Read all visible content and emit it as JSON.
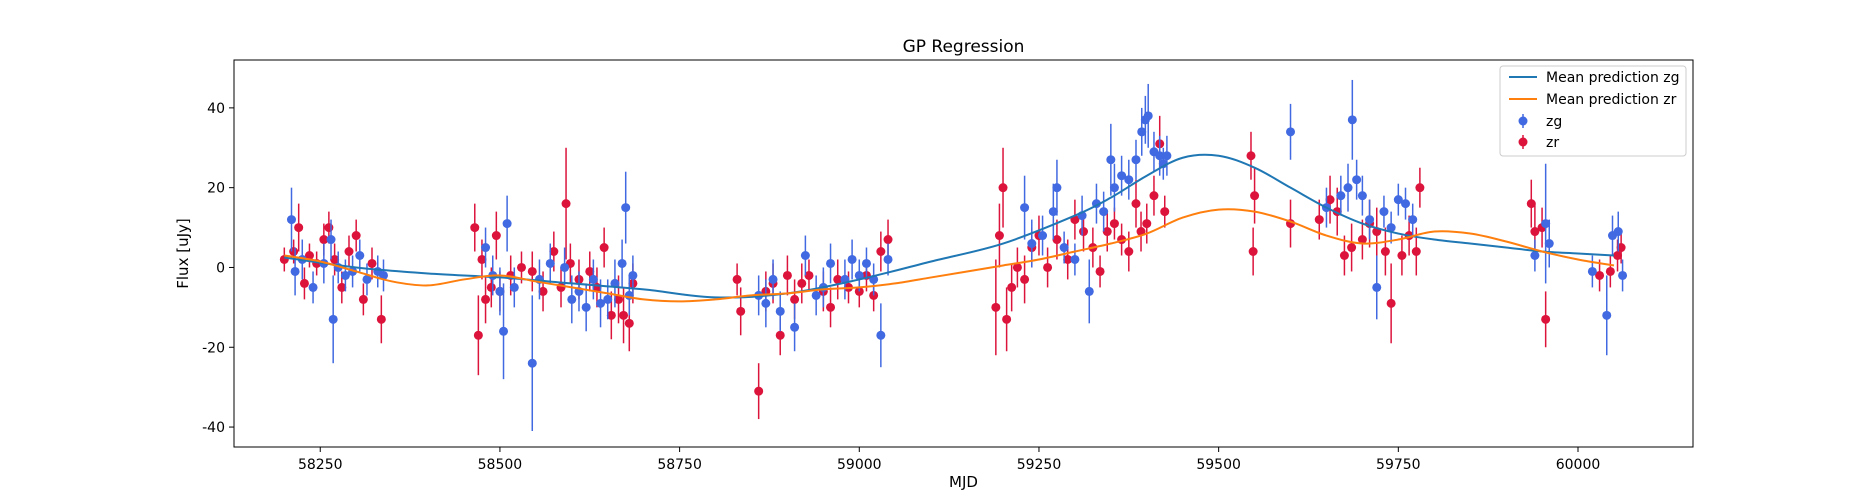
{
  "chart_data": {
    "type": "scatter",
    "title": "GP Regression",
    "xlabel": "MJD",
    "ylabel": "Flux [uJy]",
    "xlim": [
      58130,
      60160
    ],
    "ylim": [
      -45,
      52
    ],
    "xticks": [
      58250,
      58500,
      58750,
      59000,
      59250,
      59500,
      59750,
      60000
    ],
    "yticks": [
      -40,
      -20,
      0,
      20,
      40
    ],
    "grid": false,
    "legend_position": "top-right",
    "colors": {
      "zg": "#4169e1",
      "zr": "#dc143c",
      "mean_zg": "#1f77b4",
      "mean_zr": "#ff7f0e"
    },
    "lines": [
      {
        "name": "Mean prediction zg",
        "color": "#1f77b4",
        "x": [
          58200,
          58300,
          58400,
          58500,
          58600,
          58700,
          58800,
          58900,
          59000,
          59100,
          59200,
          59300,
          59350,
          59400,
          59450,
          59500,
          59550,
          59600,
          59650,
          59700,
          59750,
          59800,
          59850,
          59900,
          59950,
          60000,
          60050
        ],
        "y": [
          2.5,
          0,
          -1.5,
          -2.5,
          -4,
          -5.5,
          -7.5,
          -6.5,
          -3,
          1.5,
          6,
          13,
          17.5,
          23,
          27.5,
          28,
          25,
          20,
          15,
          11,
          8.5,
          7,
          6,
          5,
          4,
          3.5,
          3
        ]
      },
      {
        "name": "Mean prediction zr",
        "color": "#ff7f0e",
        "x": [
          58200,
          58250,
          58300,
          58350,
          58400,
          58450,
          58500,
          58550,
          58600,
          58650,
          58700,
          58750,
          58800,
          58850,
          58900,
          58950,
          59000,
          59050,
          59100,
          59150,
          59200,
          59250,
          59300,
          59350,
          59400,
          59450,
          59500,
          59550,
          59600,
          59650,
          59700,
          59750,
          59800,
          59850,
          59900,
          59950,
          60000,
          60050
        ],
        "y": [
          3,
          1.5,
          -1,
          -3.5,
          -4.5,
          -3,
          -2,
          -3.5,
          -5,
          -6.5,
          -8,
          -8.5,
          -8,
          -7,
          -6.5,
          -5.5,
          -5,
          -4,
          -2.5,
          -1,
          0.5,
          2,
          4,
          6,
          8.5,
          12.5,
          14.5,
          14,
          11.5,
          8,
          6,
          7,
          9,
          8.5,
          6.5,
          4,
          2,
          0.5
        ]
      }
    ],
    "series": [
      {
        "name": "zg",
        "color": "#4169e1",
        "points": [
          [
            58210,
            12,
            8
          ],
          [
            58215,
            -1,
            6
          ],
          [
            58225,
            2,
            5
          ],
          [
            58240,
            -5,
            4
          ],
          [
            58255,
            1,
            5
          ],
          [
            58265,
            7,
            5
          ],
          [
            58268,
            -13,
            11
          ],
          [
            58275,
            0,
            4
          ],
          [
            58285,
            -2,
            4
          ],
          [
            58295,
            -1,
            4
          ],
          [
            58305,
            3,
            4
          ],
          [
            58315,
            -3,
            4
          ],
          [
            58330,
            -1,
            4
          ],
          [
            58338,
            -2,
            4
          ],
          [
            58480,
            5,
            5
          ],
          [
            58490,
            -2,
            5
          ],
          [
            58500,
            -6,
            6
          ],
          [
            58505,
            -16,
            12
          ],
          [
            58510,
            11,
            7
          ],
          [
            58520,
            -5,
            5
          ],
          [
            58545,
            -24,
            17
          ],
          [
            58555,
            -3,
            5
          ],
          [
            58570,
            1,
            5
          ],
          [
            58590,
            0,
            5
          ],
          [
            58600,
            -8,
            6
          ],
          [
            58610,
            -6,
            5
          ],
          [
            58620,
            -10,
            6
          ],
          [
            58630,
            -3,
            5
          ],
          [
            58640,
            -9,
            6
          ],
          [
            58650,
            -8,
            5
          ],
          [
            58660,
            -4,
            6
          ],
          [
            58670,
            1,
            6
          ],
          [
            58675,
            15,
            9
          ],
          [
            58680,
            -7,
            5
          ],
          [
            58685,
            -2,
            5
          ],
          [
            58860,
            -7,
            5
          ],
          [
            58870,
            -9,
            6
          ],
          [
            58880,
            -3,
            5
          ],
          [
            58890,
            -11,
            5
          ],
          [
            58910,
            -15,
            6
          ],
          [
            58925,
            3,
            5
          ],
          [
            58940,
            -7,
            5
          ],
          [
            58950,
            -5,
            5
          ],
          [
            58960,
            1,
            5
          ],
          [
            58980,
            -3,
            5
          ],
          [
            58990,
            2,
            5
          ],
          [
            59000,
            -2,
            4
          ],
          [
            59010,
            1,
            4
          ],
          [
            59020,
            -3,
            4
          ],
          [
            59030,
            -17,
            8
          ],
          [
            59040,
            2,
            4
          ],
          [
            59230,
            15,
            8
          ],
          [
            59240,
            6,
            6
          ],
          [
            59255,
            8,
            5
          ],
          [
            59270,
            14,
            7
          ],
          [
            59275,
            20,
            7
          ],
          [
            59285,
            5,
            4
          ],
          [
            59300,
            2,
            4
          ],
          [
            59310,
            13,
            5
          ],
          [
            59320,
            -6,
            8
          ],
          [
            59330,
            16,
            5
          ],
          [
            59340,
            14,
            5
          ],
          [
            59350,
            27,
            9
          ],
          [
            59355,
            20,
            6
          ],
          [
            59365,
            23,
            5
          ],
          [
            59375,
            22,
            5
          ],
          [
            59385,
            27,
            5
          ],
          [
            59393,
            34,
            6
          ],
          [
            59398,
            37,
            6
          ],
          [
            59402,
            38,
            8
          ],
          [
            59410,
            29,
            5
          ],
          [
            59418,
            28,
            5
          ],
          [
            59423,
            26,
            4
          ],
          [
            59428,
            28,
            5
          ],
          [
            59600,
            34,
            7
          ],
          [
            59650,
            15,
            5
          ],
          [
            59670,
            18,
            5
          ],
          [
            59680,
            20,
            6
          ],
          [
            59686,
            37,
            10
          ],
          [
            59692,
            22,
            5
          ],
          [
            59700,
            18,
            5
          ],
          [
            59710,
            12,
            5
          ],
          [
            59720,
            -5,
            8
          ],
          [
            59730,
            14,
            4
          ],
          [
            59740,
            10,
            4
          ],
          [
            59750,
            17,
            4
          ],
          [
            59760,
            16,
            4
          ],
          [
            59770,
            12,
            4
          ],
          [
            59955,
            11,
            15
          ],
          [
            59960,
            6,
            6
          ],
          [
            59940,
            3,
            4
          ],
          [
            60020,
            -1,
            4
          ],
          [
            60040,
            -12,
            10
          ],
          [
            60048,
            8,
            5
          ],
          [
            60056,
            9,
            5
          ],
          [
            60062,
            -2,
            4
          ]
        ]
      },
      {
        "name": "zr",
        "color": "#dc143c",
        "points": [
          [
            58200,
            2,
            3
          ],
          [
            58213,
            4,
            3
          ],
          [
            58220,
            10,
            6
          ],
          [
            58228,
            -4,
            4
          ],
          [
            58235,
            3,
            3
          ],
          [
            58245,
            1,
            3
          ],
          [
            58255,
            7,
            4
          ],
          [
            58262,
            10,
            4
          ],
          [
            58270,
            2,
            4
          ],
          [
            58280,
            -5,
            4
          ],
          [
            58290,
            4,
            4
          ],
          [
            58300,
            8,
            4
          ],
          [
            58310,
            -8,
            4
          ],
          [
            58322,
            1,
            4
          ],
          [
            58335,
            -13,
            6
          ],
          [
            58465,
            10,
            6
          ],
          [
            58470,
            -17,
            10
          ],
          [
            58475,
            2,
            5
          ],
          [
            58480,
            -8,
            6
          ],
          [
            58488,
            -5,
            5
          ],
          [
            58495,
            8,
            6
          ],
          [
            58500,
            -6,
            5
          ],
          [
            58515,
            -2,
            5
          ],
          [
            58530,
            0,
            4
          ],
          [
            58545,
            -1,
            5
          ],
          [
            58560,
            -6,
            5
          ],
          [
            58575,
            4,
            5
          ],
          [
            58585,
            -5,
            5
          ],
          [
            58592,
            16,
            14
          ],
          [
            58598,
            1,
            5
          ],
          [
            58610,
            -3,
            5
          ],
          [
            58625,
            -1,
            5
          ],
          [
            58635,
            -5,
            5
          ],
          [
            58645,
            5,
            5
          ],
          [
            58655,
            -12,
            6
          ],
          [
            58665,
            -8,
            6
          ],
          [
            58672,
            -12,
            7
          ],
          [
            58680,
            -14,
            7
          ],
          [
            58685,
            -4,
            5
          ],
          [
            58830,
            -3,
            4
          ],
          [
            58835,
            -11,
            6
          ],
          [
            58860,
            -31,
            7
          ],
          [
            58870,
            -6,
            5
          ],
          [
            58880,
            -4,
            5
          ],
          [
            58890,
            -17,
            5
          ],
          [
            58900,
            -2,
            5
          ],
          [
            58910,
            -8,
            5
          ],
          [
            58920,
            -4,
            5
          ],
          [
            58930,
            -2,
            4
          ],
          [
            58950,
            -6,
            5
          ],
          [
            58960,
            -10,
            5
          ],
          [
            58970,
            -3,
            5
          ],
          [
            58985,
            -5,
            4
          ],
          [
            59000,
            -6,
            4
          ],
          [
            59010,
            -2,
            4
          ],
          [
            59020,
            -7,
            4
          ],
          [
            59030,
            4,
            5
          ],
          [
            59040,
            7,
            5
          ],
          [
            59190,
            -10,
            12
          ],
          [
            59195,
            8,
            8
          ],
          [
            59200,
            20,
            10
          ],
          [
            59205,
            -13,
            8
          ],
          [
            59212,
            -5,
            6
          ],
          [
            59220,
            0,
            5
          ],
          [
            59230,
            -3,
            6
          ],
          [
            59240,
            5,
            5
          ],
          [
            59250,
            8,
            5
          ],
          [
            59262,
            0,
            5
          ],
          [
            59275,
            7,
            5
          ],
          [
            59290,
            2,
            5
          ],
          [
            59300,
            12,
            5
          ],
          [
            59312,
            9,
            5
          ],
          [
            59325,
            5,
            5
          ],
          [
            59335,
            -1,
            4
          ],
          [
            59345,
            9,
            5
          ],
          [
            59355,
            11,
            4
          ],
          [
            59365,
            7,
            4
          ],
          [
            59375,
            4,
            5
          ],
          [
            59385,
            16,
            6
          ],
          [
            59392,
            9,
            5
          ],
          [
            59400,
            11,
            5
          ],
          [
            59410,
            18,
            5
          ],
          [
            59418,
            31,
            7
          ],
          [
            59425,
            14,
            4
          ],
          [
            59545,
            28,
            6
          ],
          [
            59548,
            4,
            6
          ],
          [
            59550,
            18,
            7
          ],
          [
            59600,
            11,
            6
          ],
          [
            59640,
            12,
            5
          ],
          [
            59655,
            17,
            6
          ],
          [
            59665,
            14,
            6
          ],
          [
            59675,
            3,
            5
          ],
          [
            59685,
            5,
            6
          ],
          [
            59700,
            7,
            5
          ],
          [
            59710,
            11,
            6
          ],
          [
            59720,
            9,
            6
          ],
          [
            59732,
            4,
            6
          ],
          [
            59740,
            -9,
            10
          ],
          [
            59755,
            3,
            5
          ],
          [
            59765,
            8,
            5
          ],
          [
            59775,
            4,
            6
          ],
          [
            59780,
            20,
            5
          ],
          [
            59935,
            16,
            6
          ],
          [
            59940,
            9,
            7
          ],
          [
            59950,
            10,
            5
          ],
          [
            59955,
            -13,
            7
          ],
          [
            60030,
            -2,
            4
          ],
          [
            60045,
            -1,
            4
          ],
          [
            60055,
            3,
            4
          ],
          [
            60060,
            5,
            4
          ]
        ]
      }
    ]
  }
}
